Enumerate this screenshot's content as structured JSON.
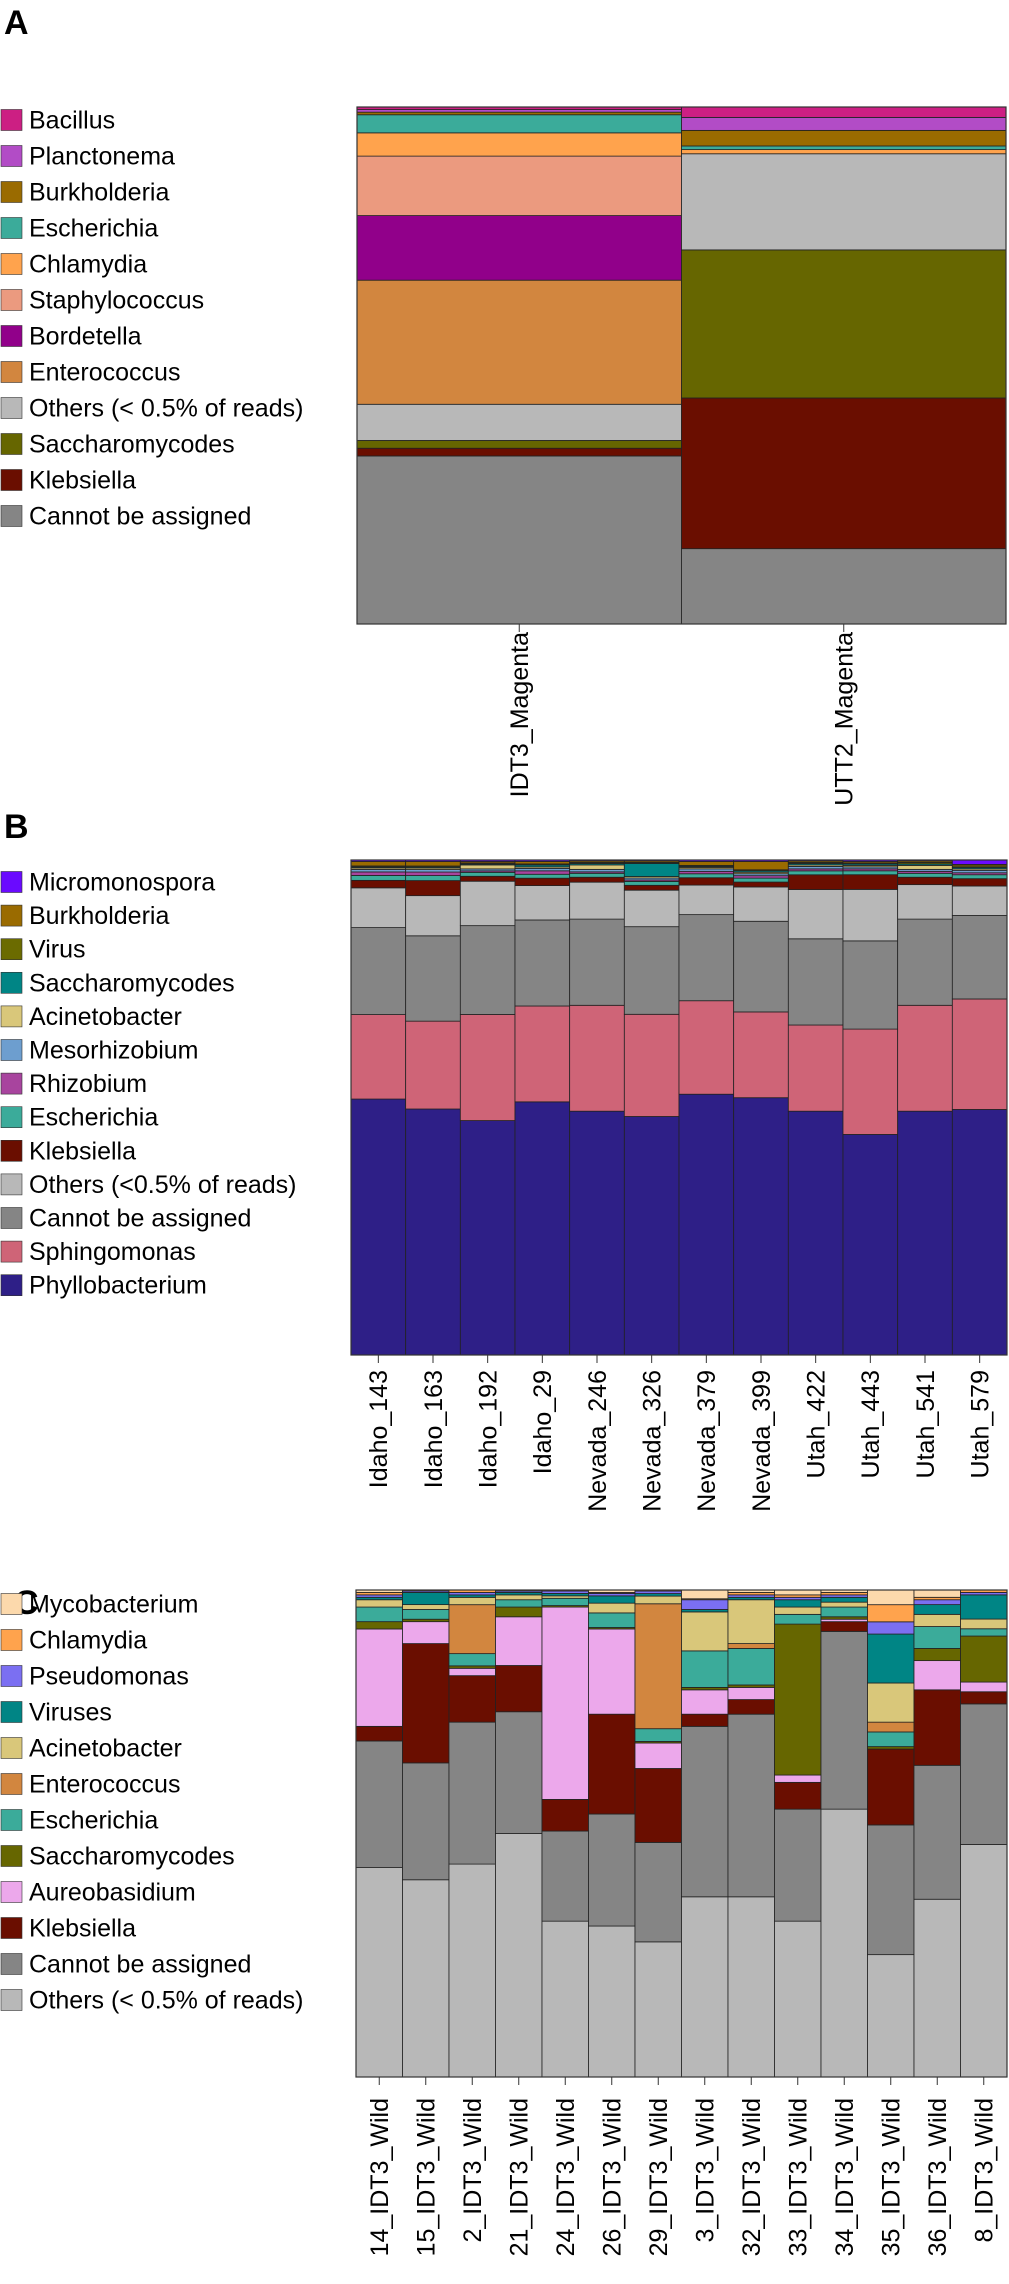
{
  "chart_data": [
    {
      "panel_label": "A",
      "type": "stacked_bar",
      "normalized": true,
      "legend_position": "left",
      "legend_entries": [
        {
          "name": "Bacillus",
          "color": "#cc1f83"
        },
        {
          "name": "Planctonema",
          "color": "#b24cc6"
        },
        {
          "name": "Burkholderia",
          "color": "#9a6b00"
        },
        {
          "name": "Escherichia",
          "color": "#3bab9a"
        },
        {
          "name": "Chlamydia",
          "color": "#ffa34d"
        },
        {
          "name": "Staphylococcus",
          "color": "#eb9a7f"
        },
        {
          "name": "Bordetella",
          "color": "#91008a"
        },
        {
          "name": "Enterococcus",
          "color": "#d2863f"
        },
        {
          "name": "Others (< 0.5% of reads)",
          "color": "#b8b8b8"
        },
        {
          "name": "Saccharomycodes",
          "color": "#666600"
        },
        {
          "name": "Klebsiella",
          "color": "#6a0e00"
        },
        {
          "name": "Cannot be assigned",
          "color": "#858585"
        }
      ],
      "categories": [
        "IDT3_Magenta",
        "UTT2_Magenta"
      ],
      "series": [
        {
          "name": "Cannot be assigned",
          "values": [
            32.5,
            14.5
          ]
        },
        {
          "name": "Klebsiella",
          "values": [
            1.5,
            29.0
          ]
        },
        {
          "name": "Saccharomycodes",
          "values": [
            1.5,
            28.5
          ]
        },
        {
          "name": "Others (< 0.5% of reads)",
          "values": [
            7.0,
            18.5
          ]
        },
        {
          "name": "Enterococcus",
          "values": [
            24.0,
            0.0
          ]
        },
        {
          "name": "Bordetella",
          "values": [
            12.5,
            0.0
          ]
        },
        {
          "name": "Staphylococcus",
          "values": [
            11.5,
            0.0
          ]
        },
        {
          "name": "Chlamydia",
          "values": [
            4.5,
            0.8
          ]
        },
        {
          "name": "Escherichia",
          "values": [
            3.5,
            0.7
          ]
        },
        {
          "name": "Burkholderia",
          "values": [
            0.5,
            3.0
          ]
        },
        {
          "name": "Planctonema",
          "values": [
            0.5,
            2.5
          ]
        },
        {
          "name": "Bacillus",
          "values": [
            0.5,
            2.0
          ]
        }
      ]
    },
    {
      "panel_label": "B",
      "type": "stacked_bar",
      "normalized": true,
      "legend_position": "left",
      "legend_entries": [
        {
          "name": "Micromonospora",
          "color": "#6a0aff"
        },
        {
          "name": "Burkholderia",
          "color": "#9a6b00"
        },
        {
          "name": "Virus",
          "color": "#6b6b00"
        },
        {
          "name": "Saccharomycodes",
          "color": "#008585"
        },
        {
          "name": "Acinetobacter",
          "color": "#d9c77a"
        },
        {
          "name": "Mesorhizobium",
          "color": "#6d9ecf"
        },
        {
          "name": "Rhizobium",
          "color": "#a8449e"
        },
        {
          "name": "Escherichia",
          "color": "#3bab9a"
        },
        {
          "name": "Klebsiella",
          "color": "#6a0e00"
        },
        {
          "name": "Others (<0.5% of reads)",
          "color": "#b8b8b8"
        },
        {
          "name": "Cannot be assigned",
          "color": "#858585"
        },
        {
          "name": "Sphingomonas",
          "color": "#cf6477"
        },
        {
          "name": "Phyllobacterium",
          "color": "#2e1f87"
        }
      ],
      "categories": [
        "Idaho_143",
        "Idaho_163",
        "Idaho_192",
        "Idaho_29",
        "Nevada_246",
        "Nevada_326",
        "Nevada_379",
        "Nevada_399",
        "Utah_422",
        "Utah_443",
        "Utah_541",
        "Utah_579"
      ],
      "series": [
        {
          "name": "Phyllobacterium",
          "values": [
            51.5,
            49.0,
            47.5,
            51.5,
            49.5,
            49.0,
            53.0,
            52.5,
            49.5,
            45.0,
            49.5,
            50.0
          ]
        },
        {
          "name": "Sphingomonas",
          "values": [
            17.0,
            17.5,
            21.5,
            19.5,
            21.5,
            21.0,
            19.0,
            17.5,
            17.5,
            21.5,
            21.5,
            22.5
          ]
        },
        {
          "name": "Cannot be assigned",
          "values": [
            17.5,
            17.0,
            18.0,
            17.5,
            17.5,
            18.0,
            17.5,
            18.5,
            17.5,
            18.0,
            17.5,
            17.0
          ]
        },
        {
          "name": "Others (<0.5% of reads)",
          "values": [
            8.0,
            8.0,
            9.0,
            7.0,
            7.5,
            7.5,
            6.0,
            7.0,
            10.0,
            10.5,
            7.0,
            6.0
          ]
        },
        {
          "name": "Klebsiella",
          "values": [
            1.5,
            3.0,
            1.0,
            1.5,
            1.0,
            1.0,
            1.5,
            1.0,
            3.0,
            3.0,
            1.5,
            1.5
          ]
        },
        {
          "name": "Escherichia",
          "values": [
            1.0,
            1.0,
            0.8,
            0.8,
            0.8,
            0.8,
            0.8,
            0.8,
            0.8,
            0.8,
            0.8,
            0.8
          ]
        },
        {
          "name": "Rhizobium",
          "values": [
            0.7,
            0.7,
            0.3,
            0.7,
            0.3,
            0.3,
            0.5,
            0.5,
            0.4,
            0.4,
            0.4,
            0.4
          ]
        },
        {
          "name": "Mesorhizobium",
          "values": [
            0.5,
            0.5,
            0.4,
            0.5,
            0.5,
            0.4,
            0.5,
            0.4,
            0.5,
            0.4,
            0.4,
            0.5
          ]
        },
        {
          "name": "Acinetobacter",
          "values": [
            0.3,
            0.3,
            0.8,
            0.3,
            0.9,
            0.3,
            0.3,
            0.3,
            0.3,
            0.3,
            0.8,
            0.3
          ]
        },
        {
          "name": "Saccharomycodes",
          "values": [
            0.2,
            0.2,
            0.2,
            0.4,
            0.3,
            2.7,
            0.2,
            0.3,
            0.3,
            0.3,
            0.3,
            0.3
          ]
        },
        {
          "name": "Virus",
          "values": [
            0.2,
            0.2,
            0.2,
            0.2,
            0.2,
            0.2,
            0.2,
            0.2,
            0.2,
            0.2,
            0.3,
            0.3
          ]
        },
        {
          "name": "Burkholderia",
          "values": [
            0.9,
            0.9,
            0.3,
            0.5,
            0.3,
            0.3,
            0.8,
            1.7,
            0.3,
            0.3,
            0.3,
            0.3
          ]
        },
        {
          "name": "Micromonospora",
          "values": [
            0.3,
            0.3,
            0.3,
            0.3,
            0.2,
            0.2,
            0.3,
            0.3,
            0.2,
            0.3,
            0.2,
            0.9
          ]
        }
      ]
    },
    {
      "panel_label": "C",
      "type": "stacked_bar",
      "normalized": true,
      "legend_position": "left",
      "legend_entries": [
        {
          "name": "Mycobacterium",
          "color": "#fcd9ac"
        },
        {
          "name": "Chlamydia",
          "color": "#ffa34d"
        },
        {
          "name": "Pseudomonas",
          "color": "#7b6ff2"
        },
        {
          "name": "Viruses",
          "color": "#008585"
        },
        {
          "name": "Acinetobacter",
          "color": "#d9c77a"
        },
        {
          "name": "Enterococcus",
          "color": "#d2863f"
        },
        {
          "name": "Escherichia",
          "color": "#3bab9a"
        },
        {
          "name": "Saccharomycodes",
          "color": "#666600"
        },
        {
          "name": "Aureobasidium",
          "color": "#eca8eb"
        },
        {
          "name": "Klebsiella",
          "color": "#6a0e00"
        },
        {
          "name": "Cannot be assigned",
          "color": "#858585"
        },
        {
          "name": "Others (< 0.5% of reads)",
          "color": "#b8b8b8"
        }
      ],
      "categories": [
        "14_IDT3_Wild",
        "15_IDT3_Wild",
        "2_IDT3_Wild",
        "21_IDT3_Wild",
        "24_IDT3_Wild",
        "26_IDT3_Wild",
        "29_IDT3_Wild",
        "3_IDT3_Wild",
        "32_IDT3_Wild",
        "33_IDT3_Wild",
        "34_IDT3_Wild",
        "35_IDT3_Wild",
        "36_IDT3_Wild",
        "8_IDT3_Wild"
      ],
      "series": [
        {
          "name": "Others (< 0.5% of reads)",
          "values": [
            43.0,
            40.5,
            43.5,
            50.0,
            32.0,
            31.0,
            26.5,
            37.0,
            37.0,
            32.0,
            55.0,
            25.0,
            36.5,
            48.0
          ]
        },
        {
          "name": "Cannot be assigned",
          "values": [
            26.0,
            24.0,
            29.0,
            25.0,
            18.5,
            23.0,
            19.5,
            35.0,
            37.5,
            23.0,
            36.5,
            26.5,
            27.5,
            29.0
          ]
        },
        {
          "name": "Klebsiella",
          "values": [
            3.0,
            24.5,
            9.5,
            9.5,
            6.5,
            20.5,
            14.5,
            2.5,
            3.0,
            5.5,
            2.0,
            15.5,
            15.5,
            2.5
          ]
        },
        {
          "name": "Aureobasidium",
          "values": [
            20.0,
            4.5,
            1.5,
            10.0,
            39.5,
            17.5,
            5.0,
            5.0,
            2.5,
            1.5,
            0.5,
            0.0,
            6.0,
            2.0
          ]
        },
        {
          "name": "Saccharomycodes",
          "values": [
            1.5,
            0.5,
            0.5,
            2.0,
            0.3,
            0.3,
            0.3,
            0.5,
            0.5,
            31.0,
            0.5,
            0.5,
            2.5,
            9.5
          ]
        },
        {
          "name": "Escherichia",
          "values": [
            3.0,
            2.0,
            2.5,
            1.5,
            1.5,
            3.0,
            2.5,
            7.5,
            7.5,
            2.0,
            2.0,
            3.0,
            4.5,
            1.5
          ]
        },
        {
          "name": "Enterococcus",
          "values": [
            0.0,
            0.0,
            10.0,
            0.0,
            0.0,
            0.0,
            24.5,
            0.0,
            1.0,
            0.0,
            0.0,
            2.0,
            0.0,
            0.0
          ]
        },
        {
          "name": "Acinetobacter",
          "values": [
            1.5,
            1.0,
            1.5,
            1.0,
            0.5,
            2.0,
            1.5,
            8.0,
            9.0,
            1.5,
            1.0,
            8.0,
            2.5,
            2.0
          ]
        },
        {
          "name": "Viruses",
          "values": [
            0.5,
            2.5,
            0.5,
            0.5,
            0.5,
            1.5,
            0.5,
            0.5,
            0.5,
            1.5,
            1.0,
            10.0,
            2.0,
            5.0
          ]
        },
        {
          "name": "Pseudomonas",
          "values": [
            0.5,
            0.3,
            0.5,
            0.3,
            0.5,
            0.5,
            0.5,
            2.0,
            0.5,
            0.5,
            0.5,
            2.5,
            1.0,
            0.5
          ]
        },
        {
          "name": "Chlamydia",
          "values": [
            0.5,
            0.2,
            0.5,
            0.2,
            0.2,
            0.2,
            0.2,
            0.2,
            0.5,
            0.5,
            0.5,
            3.5,
            0.5,
            0.5
          ]
        },
        {
          "name": "Mycobacterium",
          "values": [
            0.5,
            0.0,
            0.0,
            0.0,
            0.0,
            0.5,
            0.0,
            1.8,
            0.5,
            1.0,
            0.5,
            3.0,
            1.5,
            0.0
          ]
        }
      ]
    }
  ]
}
